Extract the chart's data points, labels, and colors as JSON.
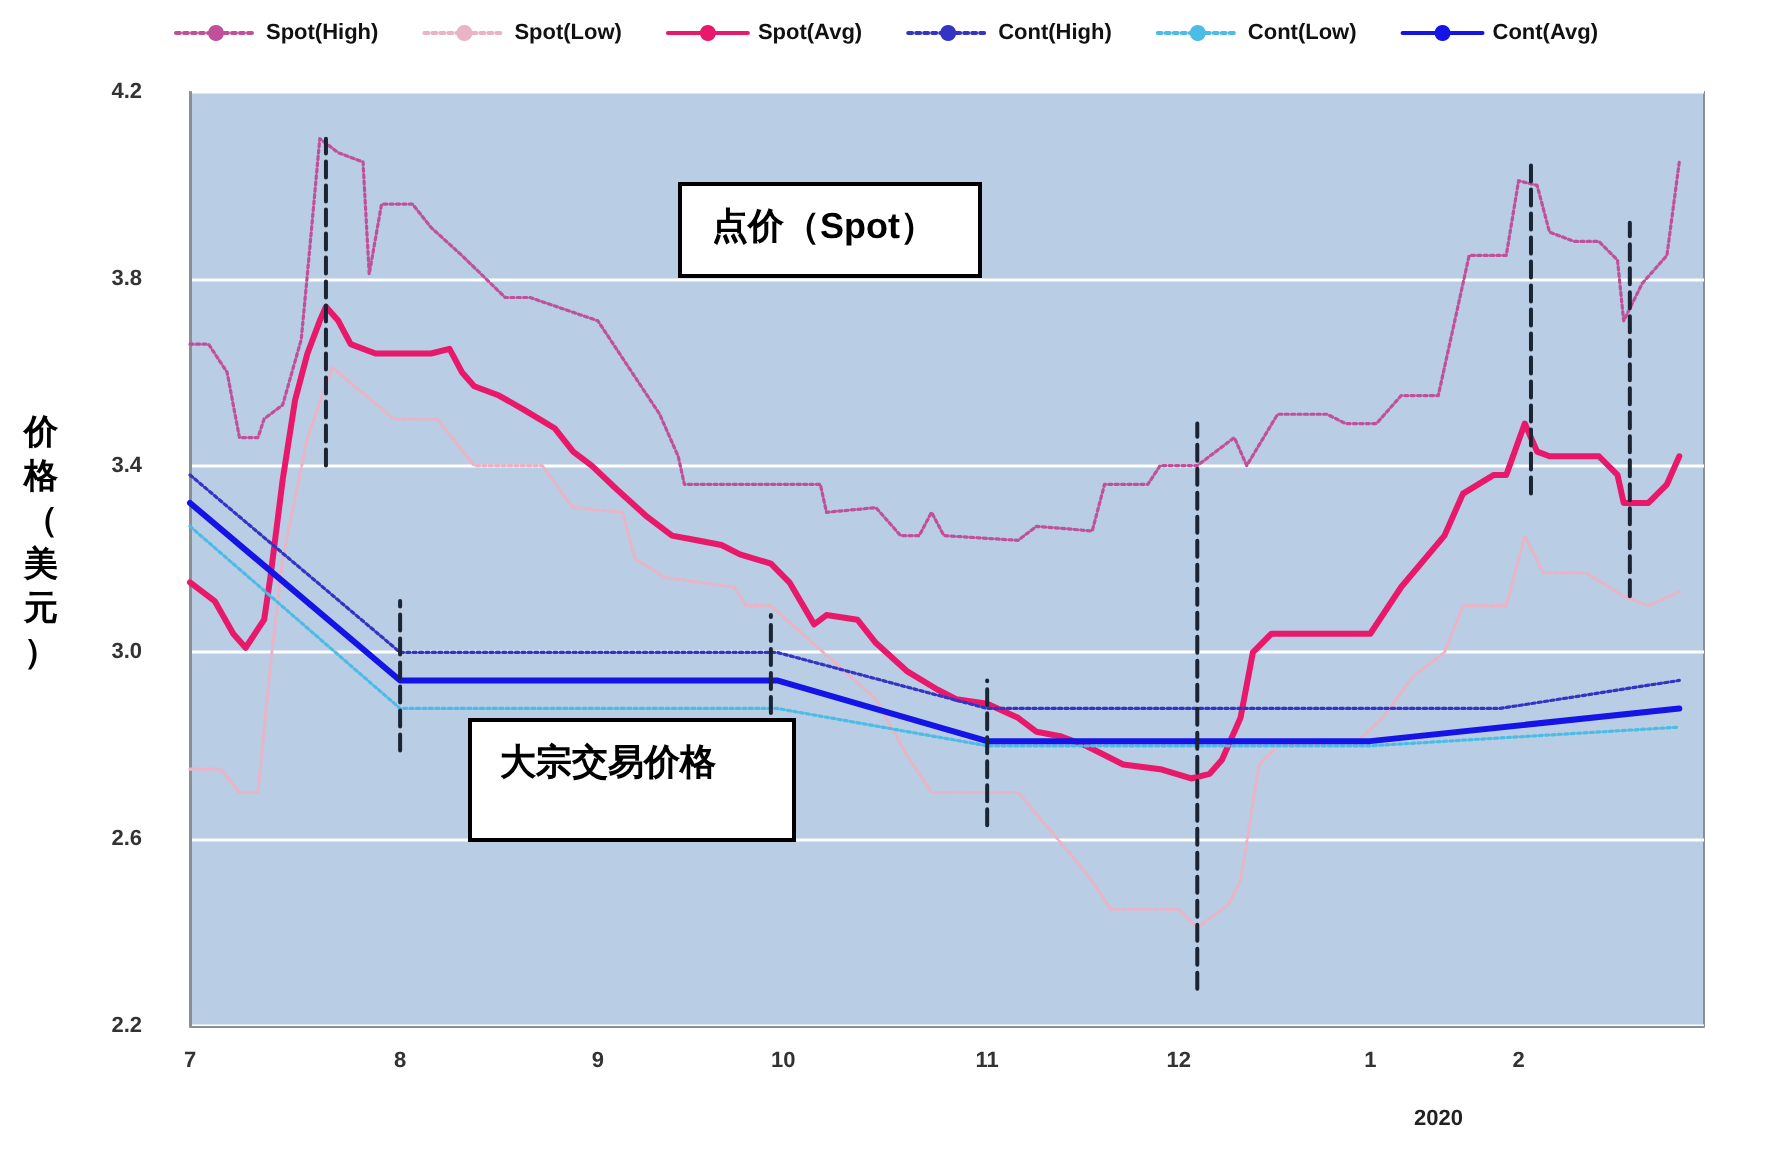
{
  "chart_data": {
    "type": "line",
    "ylabel": "价格（美元）",
    "legend": "top",
    "grid": "y",
    "marker": "none",
    "xlim": [
      "2019-07-01",
      "2020-03-02"
    ],
    "xticks": [
      {
        "value": "2019-07-01",
        "label": "7"
      },
      {
        "value": "2019-08-04",
        "label": "8"
      },
      {
        "value": "2019-09-05",
        "label": "9"
      },
      {
        "value": "2019-10-05",
        "label": "10"
      },
      {
        "value": "2019-11-07",
        "label": "11"
      },
      {
        "value": "2019-12-08",
        "label": "12"
      },
      {
        "value": "2020-01-08",
        "label": "1"
      },
      {
        "value": "2020-02-01",
        "label": "2"
      }
    ],
    "ylim": [
      2.2,
      4.2
    ],
    "yticks": [
      {
        "value": 2.2,
        "label": "2.2"
      },
      {
        "value": 2.6,
        "label": "2.6"
      },
      {
        "value": 3,
        "label": "3.0"
      },
      {
        "value": 3.4,
        "label": "3.4"
      },
      {
        "value": 3.8,
        "label": "3.8"
      },
      {
        "value": 4.2,
        "label": "4.2"
      }
    ],
    "annotations": [
      "点价（Spot）",
      "大宗交易价格",
      "2020"
    ],
    "series": [
      {
        "name": "Spot(High)",
        "color": "#c0509a",
        "line_style": "dotted",
        "x": [
          "2019-07-01",
          "2019-07-04",
          "2019-07-07",
          "2019-07-09",
          "2019-07-12",
          "2019-07-13",
          "2019-07-16",
          "2019-07-19",
          "2019-07-20",
          "2019-07-22",
          "2019-07-25",
          "2019-07-29",
          "2019-07-30",
          "2019-08-01",
          "2019-08-06",
          "2019-08-09",
          "2019-08-14",
          "2019-08-21",
          "2019-08-25",
          "2019-09-05",
          "2019-09-09",
          "2019-09-15",
          "2019-09-18",
          "2019-09-19",
          "2019-10-11",
          "2019-10-12",
          "2019-10-20",
          "2019-10-24",
          "2019-10-27",
          "2019-10-29",
          "2019-10-31",
          "2019-11-12",
          "2019-11-15",
          "2019-11-24",
          "2019-11-26",
          "2019-12-03",
          "2019-12-05",
          "2019-12-11",
          "2019-12-17",
          "2019-12-19",
          "2019-12-24",
          "2020-01-01",
          "2020-01-04",
          "2020-01-09",
          "2020-01-13",
          "2020-01-19",
          "2020-01-24",
          "2020-01-30",
          "2020-02-01",
          "2020-02-04",
          "2020-02-06",
          "2020-02-10",
          "2020-02-14",
          "2020-02-17",
          "2020-02-18",
          "2020-02-21",
          "2020-02-25",
          "2020-02-27"
        ],
        "values": [
          3.66,
          3.66,
          3.6,
          3.46,
          3.46,
          3.5,
          3.53,
          3.67,
          3.81,
          4.1,
          4.07,
          4.05,
          3.81,
          3.96,
          3.96,
          3.91,
          3.85,
          3.76,
          3.76,
          3.71,
          3.63,
          3.51,
          3.42,
          3.36,
          3.36,
          3.3,
          3.31,
          3.25,
          3.25,
          3.3,
          3.25,
          3.24,
          3.27,
          3.26,
          3.36,
          3.36,
          3.4,
          3.4,
          3.46,
          3.4,
          3.51,
          3.51,
          3.49,
          3.49,
          3.55,
          3.55,
          3.85,
          3.85,
          4.01,
          4.0,
          3.9,
          3.88,
          3.88,
          3.84,
          3.71,
          3.79,
          3.85,
          4.05
        ]
      },
      {
        "name": "Spot(Low)",
        "color": "#eab4c6",
        "line_style": "dotted",
        "x": [
          "2019-07-01",
          "2019-07-06",
          "2019-07-09",
          "2019-07-12",
          "2019-07-14",
          "2019-07-16",
          "2019-07-20",
          "2019-07-24",
          "2019-08-03",
          "2019-08-10",
          "2019-08-16",
          "2019-08-27",
          "2019-09-01",
          "2019-09-09",
          "2019-09-11",
          "2019-09-16",
          "2019-09-27",
          "2019-09-29",
          "2019-10-03",
          "2019-10-20",
          "2019-10-25",
          "2019-10-29",
          "2019-11-12",
          "2019-11-21",
          "2019-11-24",
          "2019-11-27",
          "2019-12-08",
          "2019-12-11",
          "2019-12-16",
          "2019-12-18",
          "2019-12-21",
          "2019-12-24",
          "2020-01-06",
          "2020-01-10",
          "2020-01-15",
          "2020-01-20",
          "2020-01-23",
          "2020-01-30",
          "2020-02-02",
          "2020-02-05",
          "2020-02-12",
          "2020-02-18",
          "2020-02-22",
          "2020-02-27"
        ],
        "values": [
          2.75,
          2.75,
          2.7,
          2.7,
          2.97,
          3.2,
          3.46,
          3.61,
          3.5,
          3.5,
          3.4,
          3.4,
          3.31,
          3.3,
          3.2,
          3.16,
          3.14,
          3.1,
          3.1,
          2.9,
          2.78,
          2.7,
          2.7,
          2.56,
          2.51,
          2.45,
          2.45,
          2.41,
          2.46,
          2.51,
          2.76,
          2.8,
          2.81,
          2.86,
          2.95,
          3.0,
          3.1,
          3.1,
          3.25,
          3.17,
          3.17,
          3.12,
          3.1,
          3.13
        ]
      },
      {
        "name": "Spot(Avg)",
        "color": "#e8186a",
        "line_style": "solid",
        "x": [
          "2019-07-01",
          "2019-07-05",
          "2019-07-08",
          "2019-07-10",
          "2019-07-13",
          "2019-07-14",
          "2019-07-16",
          "2019-07-18",
          "2019-07-19",
          "2019-07-20",
          "2019-07-22",
          "2019-07-23",
          "2019-07-25",
          "2019-07-27",
          "2019-07-31",
          "2019-08-03",
          "2019-08-09",
          "2019-08-12",
          "2019-08-14",
          "2019-08-16",
          "2019-08-20",
          "2019-08-24",
          "2019-08-29",
          "2019-09-01",
          "2019-09-04",
          "2019-09-08",
          "2019-09-13",
          "2019-09-17",
          "2019-09-21",
          "2019-09-25",
          "2019-09-28",
          "2019-10-03",
          "2019-10-06",
          "2019-10-10",
          "2019-10-12",
          "2019-10-17",
          "2019-10-20",
          "2019-10-25",
          "2019-10-30",
          "2019-11-02",
          "2019-11-07",
          "2019-11-12",
          "2019-11-15",
          "2019-11-19",
          "2019-11-23",
          "2019-11-29",
          "2019-12-05",
          "2019-12-10",
          "2019-12-13",
          "2019-12-15",
          "2019-12-18",
          "2019-12-20",
          "2019-12-23",
          "2019-12-28",
          "2020-01-01",
          "2020-01-08",
          "2020-01-13",
          "2020-01-20",
          "2020-01-23",
          "2020-01-28",
          "2020-01-30",
          "2020-02-02",
          "2020-02-04",
          "2020-02-06",
          "2020-02-14",
          "2020-02-17",
          "2020-02-18",
          "2020-02-22",
          "2020-02-25",
          "2020-02-27"
        ],
        "values": [
          3.15,
          3.11,
          3.04,
          3.01,
          3.07,
          3.16,
          3.37,
          3.54,
          3.59,
          3.64,
          3.71,
          3.74,
          3.71,
          3.66,
          3.64,
          3.64,
          3.64,
          3.65,
          3.6,
          3.57,
          3.55,
          3.52,
          3.48,
          3.43,
          3.4,
          3.35,
          3.29,
          3.25,
          3.24,
          3.23,
          3.21,
          3.19,
          3.15,
          3.06,
          3.08,
          3.07,
          3.02,
          2.96,
          2.92,
          2.9,
          2.89,
          2.86,
          2.83,
          2.82,
          2.8,
          2.76,
          2.75,
          2.73,
          2.74,
          2.77,
          2.86,
          3.0,
          3.04,
          3.04,
          3.04,
          3.04,
          3.14,
          3.25,
          3.34,
          3.38,
          3.38,
          3.49,
          3.43,
          3.42,
          3.42,
          3.38,
          3.32,
          3.32,
          3.36,
          3.42
        ]
      },
      {
        "name": "Cont(High)",
        "color": "#3434c4",
        "line_style": "dotted",
        "x": [
          "2019-07-01",
          "2019-08-04",
          "2019-10-04",
          "2019-11-07",
          "2020-01-29",
          "2020-02-27"
        ],
        "values": [
          3.38,
          3.0,
          3.0,
          2.88,
          2.88,
          2.94
        ]
      },
      {
        "name": "Cont(Low)",
        "color": "#4cbce6",
        "line_style": "dotted",
        "x": [
          "2019-07-01",
          "2019-08-04",
          "2019-10-04",
          "2019-11-07",
          "2020-01-08",
          "2020-02-27"
        ],
        "values": [
          3.27,
          2.88,
          2.88,
          2.8,
          2.8,
          2.84
        ]
      },
      {
        "name": "Cont(Avg)",
        "color": "#1414e6",
        "line_style": "solid",
        "x": [
          "2019-07-01",
          "2019-08-04",
          "2019-10-04",
          "2019-11-07",
          "2020-01-08",
          "2020-02-27"
        ],
        "values": [
          3.32,
          2.94,
          2.94,
          2.81,
          2.81,
          2.88
        ]
      },
      {
        "color": "#1a2433",
        "line_style": "dashed",
        "x": [
          "2019-07-23",
          "2019-07-23"
        ],
        "values": [
          3.4,
          4.1
        ]
      },
      {
        "color": "#1a2433",
        "line_style": "dashed",
        "x": [
          "2019-08-04",
          "2019-08-04"
        ],
        "values": [
          2.79,
          3.11
        ]
      },
      {
        "color": "#1a2433",
        "line_style": "dashed",
        "x": [
          "2019-10-03",
          "2019-10-03"
        ],
        "values": [
          2.87,
          3.08
        ]
      },
      {
        "color": "#1a2433",
        "line_style": "dashed",
        "x": [
          "2019-11-07",
          "2019-11-07"
        ],
        "values": [
          2.63,
          2.94
        ]
      },
      {
        "color": "#1a2433",
        "line_style": "dashed",
        "x": [
          "2019-12-11",
          "2019-12-11"
        ],
        "values": [
          2.28,
          3.49
        ]
      },
      {
        "color": "#1a2433",
        "line_style": "dashed",
        "x": [
          "2020-02-03",
          "2020-02-03"
        ],
        "values": [
          3.34,
          4.05
        ]
      },
      {
        "color": "#1a2433",
        "line_style": "dashed",
        "x": [
          "2020-02-19",
          "2020-02-19"
        ],
        "values": [
          3.12,
          3.92
        ]
      }
    ]
  }
}
